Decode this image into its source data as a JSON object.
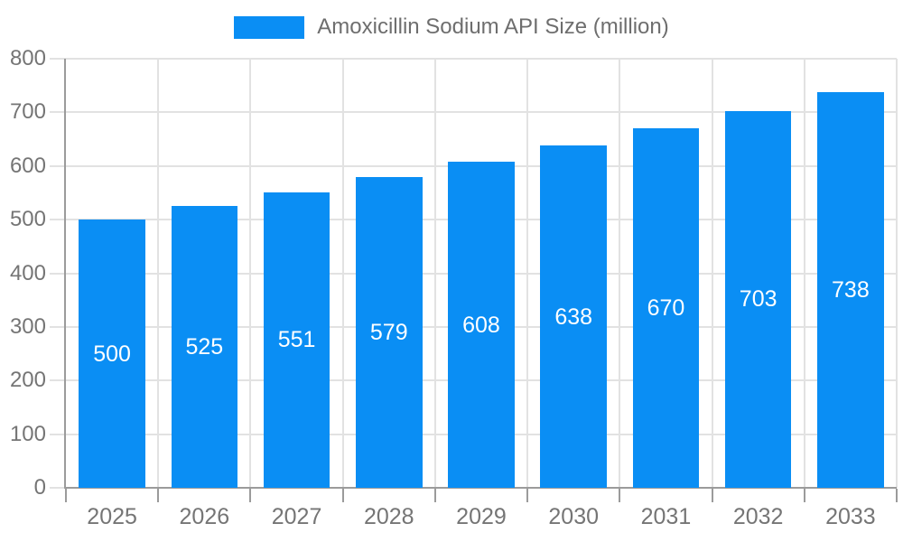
{
  "chart_data": {
    "type": "bar",
    "title": "Amoxicillin Sodium API Size (million)",
    "categories": [
      "2025",
      "2026",
      "2027",
      "2028",
      "2029",
      "2030",
      "2031",
      "2032",
      "2033"
    ],
    "values": [
      500,
      525,
      551,
      579,
      608,
      638,
      670,
      703,
      738
    ],
    "xlabel": "",
    "ylabel": "",
    "ylim": [
      0,
      800
    ],
    "yticks": [
      0,
      100,
      200,
      300,
      400,
      500,
      600,
      700,
      800
    ],
    "grid": true,
    "legend_position": "top",
    "value_label_position": "inside-center",
    "colors": {
      "bar": "#0a8ef4",
      "value_label": "#ffffff",
      "axis_text": "#757575",
      "legend_text": "#6e6e6e",
      "gridline": "#e2e2e2",
      "axis_line": "#9b9b9b",
      "background": "#ffffff"
    }
  },
  "legend": {
    "series_label": "Amoxicillin Sodium API Size (million)"
  }
}
